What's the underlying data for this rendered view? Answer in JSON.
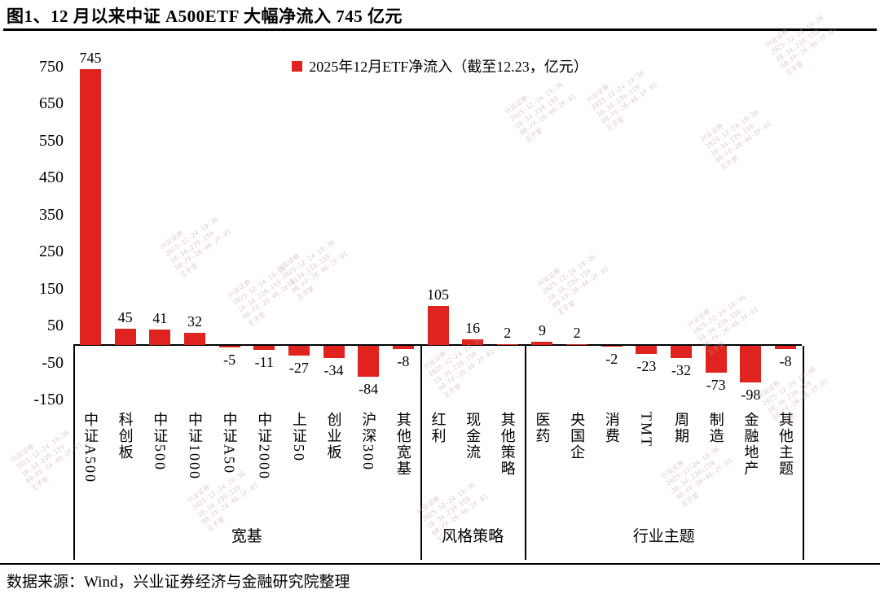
{
  "page": {
    "title": "图1、12 月以来中证 A500ETF 大幅净流入 745 亿元",
    "source": "数据来源：Wind，兴业证券经济与金融研究院整理"
  },
  "chart_data": {
    "type": "bar",
    "title": "图1、12 月以来中证 A500ETF 大幅净流入 745 亿元",
    "legend": "2025年12月ETF净流入（截至12.23，亿元）",
    "legend_position": "top-center",
    "bar_color": "#e0231e",
    "grid": false,
    "ylim": [
      -150,
      800
    ],
    "y_ticks": [
      750,
      650,
      550,
      450,
      350,
      250,
      150,
      50,
      -50,
      -150
    ],
    "categories": [
      "中证A500",
      "科创板",
      "中证500",
      "中证1000",
      "中证A50",
      "中证2000",
      "上证50",
      "创业板",
      "沪深300",
      "其他宽基",
      "红利",
      "现金流",
      "其他策略",
      "医药",
      "央国企",
      "消费",
      "TMT",
      "周期",
      "制造",
      "金融地产",
      "其他主题"
    ],
    "values": [
      745,
      45,
      41,
      32,
      -5,
      -11,
      -27,
      -34,
      -84,
      -8,
      105,
      16,
      2,
      9,
      2,
      -2,
      -23,
      -32,
      -73,
      -98,
      -8
    ],
    "groups": [
      {
        "label": "宽基",
        "count": 10
      },
      {
        "label": "风格策略",
        "count": 3
      },
      {
        "label": "行业主题",
        "count": 8
      }
    ]
  },
  "watermark": {
    "lines": [
      "兴业证券",
      "2025-12-24 19:36",
      "10.34.239.159",
      "00-FF-26-46-2F-01",
      "王子堂"
    ],
    "color": "#c99f9f"
  }
}
